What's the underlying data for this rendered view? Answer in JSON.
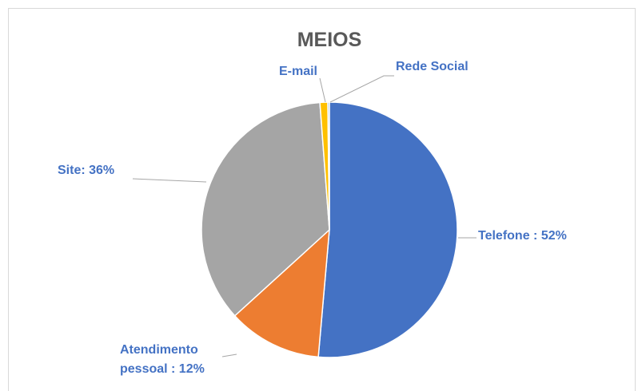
{
  "chart_data": {
    "type": "pie",
    "title": "MEIOS",
    "categories": [
      "Telefone : 52%",
      "Atendimento pessoal : 12%",
      "Site: 36%",
      "E-mail",
      "Rede Social"
    ],
    "values": [
      52,
      12,
      36,
      1,
      0.2
    ],
    "colors": [
      "#4472c4",
      "#ed7d31",
      "#a5a5a5",
      "#ffc000",
      "#5b9bd5"
    ]
  }
}
